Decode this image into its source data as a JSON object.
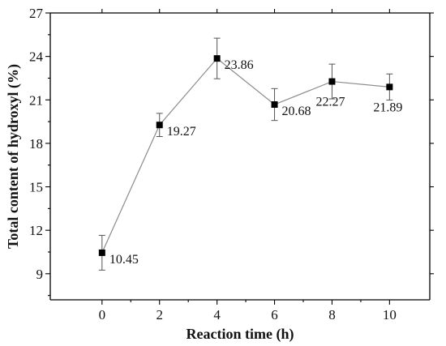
{
  "chart_data": {
    "type": "line",
    "title": "",
    "xlabel": "Reaction time (h)",
    "ylabel": "Total content of hydroxyl (%)",
    "xlim": [
      -1.8,
      11.4
    ],
    "ylim": [
      7.2,
      27
    ],
    "xticks": [
      0,
      2,
      4,
      6,
      8,
      10
    ],
    "yticks": [
      9,
      12,
      15,
      18,
      21,
      24,
      27
    ],
    "grid": false,
    "series": [
      {
        "x": [
          0,
          2,
          4,
          6,
          8,
          10
        ],
        "y": [
          10.45,
          19.27,
          23.86,
          20.68,
          22.27,
          21.89
        ],
        "error": [
          1.2,
          0.8,
          1.4,
          1.1,
          1.2,
          0.9
        ],
        "labels": [
          "10.45",
          "19.27",
          "23.86",
          "20.68",
          "22.27",
          "21.89"
        ],
        "color": "#8c8c8c",
        "marker": "square",
        "marker_color": "#000000"
      }
    ]
  }
}
